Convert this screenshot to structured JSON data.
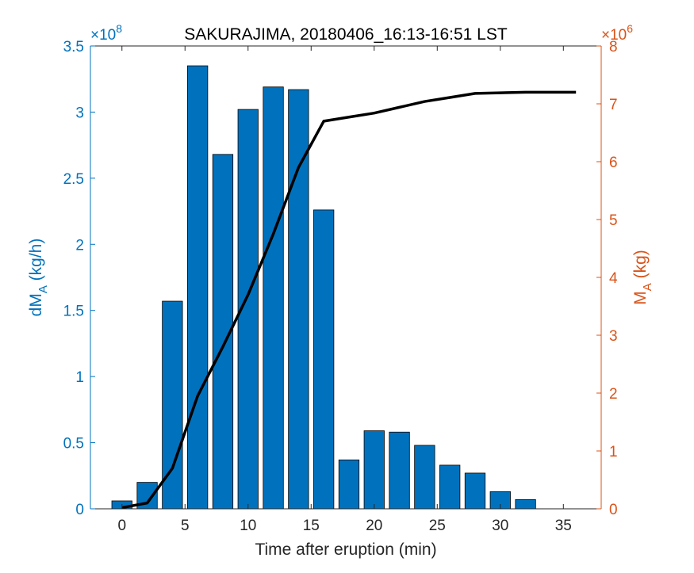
{
  "chart_data": {
    "type": "bar",
    "title": "SAKURAJIMA, 20180406_16:13-16:51 LST",
    "xlabel": "Time after eruption (min)",
    "ylabel_left": {
      "base": "dM",
      "sub": "A",
      "unit": " (kg/h)"
    },
    "ylabel_right": {
      "base": "M",
      "sub": "A",
      "unit": " (kg)"
    },
    "left_exponent": {
      "times": "×10",
      "power": "8"
    },
    "right_exponent": {
      "times": "×10",
      "power": "6"
    },
    "xlim": [
      -2.5,
      38
    ],
    "ylim_left": [
      0,
      3.5
    ],
    "ylim_right": [
      0,
      8
    ],
    "x_ticks": [
      "0",
      "5",
      "10",
      "15",
      "20",
      "25",
      "30",
      "35"
    ],
    "x_tick_values": [
      0,
      5,
      10,
      15,
      20,
      25,
      30,
      35
    ],
    "y_left_ticks": [
      "0",
      "0.5",
      "1",
      "1.5",
      "2",
      "2.5",
      "3",
      "3.5"
    ],
    "y_left_tick_values": [
      0,
      0.5,
      1,
      1.5,
      2,
      2.5,
      3,
      3.5
    ],
    "y_right_ticks": [
      "0",
      "1",
      "2",
      "3",
      "4",
      "5",
      "6",
      "7",
      "8"
    ],
    "y_right_tick_values": [
      0,
      1,
      2,
      3,
      4,
      5,
      6,
      7,
      8
    ],
    "bar_width": 1.6,
    "bars": {
      "axis": "left",
      "color": "#0072BD",
      "x": [
        0,
        2,
        4,
        6,
        8,
        10,
        12,
        14,
        16,
        18,
        20,
        22,
        24,
        26,
        28,
        30,
        32
      ],
      "values": [
        0.06,
        0.2,
        1.57,
        3.35,
        2.68,
        3.02,
        3.19,
        3.17,
        2.26,
        0.37,
        0.59,
        0.58,
        0.48,
        0.33,
        0.27,
        0.13,
        0.07
      ]
    },
    "line": {
      "axis": "right",
      "color": "#000000",
      "x": [
        0,
        2,
        4,
        6,
        8,
        10,
        12,
        14,
        16,
        18,
        20,
        22,
        24,
        26,
        28,
        30,
        32,
        34,
        36
      ],
      "values": [
        0.02,
        0.1,
        0.7,
        1.95,
        2.8,
        3.7,
        4.75,
        5.9,
        6.7,
        6.77,
        6.84,
        6.94,
        7.04,
        7.11,
        7.18,
        7.19,
        7.2,
        7.2,
        7.2
      ]
    }
  }
}
